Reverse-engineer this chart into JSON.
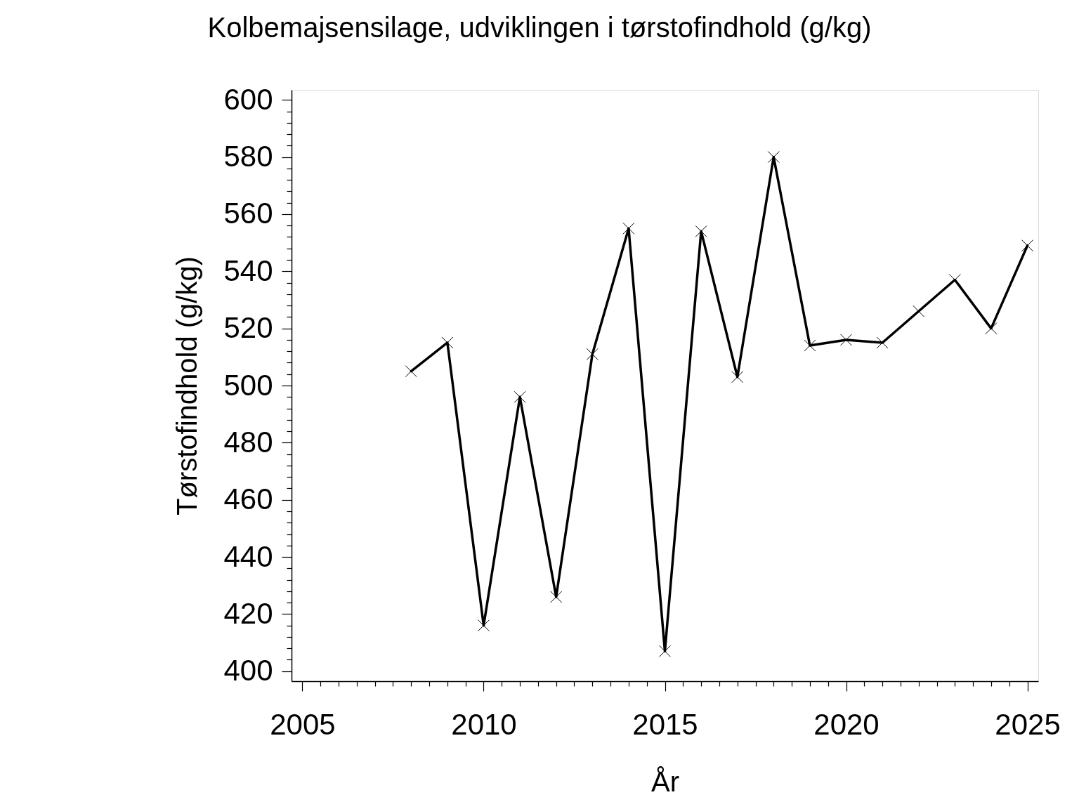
{
  "chart_data": {
    "type": "line",
    "title": "Kolbemajsensilage, udviklingen i tørstofindhold (g/kg)",
    "xlabel": "År",
    "ylabel": "Tørstofindhold (g/kg)",
    "x": [
      2008,
      2009,
      2010,
      2011,
      2012,
      2013,
      2014,
      2015,
      2016,
      2017,
      2018,
      2019,
      2020,
      2021,
      2022,
      2023,
      2024,
      2025
    ],
    "series": [
      {
        "color": "#000000",
        "values": [
          505,
          515,
          416,
          496,
          426,
          511,
          555,
          407,
          554,
          503,
          580,
          514,
          516,
          515,
          526,
          537,
          520,
          549
        ]
      }
    ],
    "xlim": [
      2004.7,
      2025.3
    ],
    "ylim": [
      396.5,
      603.5
    ],
    "xticks": [
      2005,
      {
        "value": 2005.5,
        "label": null
      },
      {
        "value": 2006,
        "label": null
      },
      {
        "value": 2006.5,
        "label": null
      },
      {
        "value": 2007,
        "label": null
      },
      {
        "value": 2007.5,
        "label": null
      },
      {
        "value": 2008,
        "label": null
      },
      {
        "value": 2008.5,
        "label": null
      },
      {
        "value": 2009,
        "label": null
      },
      {
        "value": 2009.5,
        "label": null
      },
      2010,
      {
        "value": 2010.5,
        "label": null
      },
      {
        "value": 2011,
        "label": null
      },
      {
        "value": 2011.5,
        "label": null
      },
      {
        "value": 2012,
        "label": null
      },
      {
        "value": 2012.5,
        "label": null
      },
      {
        "value": 2013,
        "label": null
      },
      {
        "value": 2013.5,
        "label": null
      },
      {
        "value": 2014,
        "label": null
      },
      {
        "value": 2014.5,
        "label": null
      },
      2015,
      {
        "value": 2015.5,
        "label": null
      },
      {
        "value": 2016,
        "label": null
      },
      {
        "value": 2016.5,
        "label": null
      },
      {
        "value": 2017,
        "label": null
      },
      {
        "value": 2017.5,
        "label": null
      },
      {
        "value": 2018,
        "label": null
      },
      {
        "value": 2018.5,
        "label": null
      },
      {
        "value": 2019,
        "label": null
      },
      {
        "value": 2019.5,
        "label": null
      },
      2020,
      {
        "value": 2020.5,
        "label": null
      },
      {
        "value": 2021,
        "label": null
      },
      {
        "value": 2021.5,
        "label": null
      },
      {
        "value": 2022,
        "label": null
      },
      {
        "value": 2022.5,
        "label": null
      },
      {
        "value": 2023,
        "label": null
      },
      {
        "value": 2023.5,
        "label": null
      },
      {
        "value": 2024,
        "label": null
      },
      {
        "value": 2024.5,
        "label": null
      },
      2025
    ],
    "yticks": [
      400,
      {
        "value": 404,
        "label": null
      },
      {
        "value": 408,
        "label": null
      },
      {
        "value": 412,
        "label": null
      },
      {
        "value": 416,
        "label": null
      },
      420,
      {
        "value": 424,
        "label": null
      },
      {
        "value": 428,
        "label": null
      },
      {
        "value": 432,
        "label": null
      },
      {
        "value": 436,
        "label": null
      },
      440,
      {
        "value": 444,
        "label": null
      },
      {
        "value": 448,
        "label": null
      },
      {
        "value": 452,
        "label": null
      },
      {
        "value": 456,
        "label": null
      },
      460,
      {
        "value": 464,
        "label": null
      },
      {
        "value": 468,
        "label": null
      },
      {
        "value": 472,
        "label": null
      },
      {
        "value": 476,
        "label": null
      },
      480,
      {
        "value": 484,
        "label": null
      },
      {
        "value": 488,
        "label": null
      },
      {
        "value": 492,
        "label": null
      },
      {
        "value": 496,
        "label": null
      },
      500,
      {
        "value": 504,
        "label": null
      },
      {
        "value": 508,
        "label": null
      },
      {
        "value": 512,
        "label": null
      },
      {
        "value": 516,
        "label": null
      },
      520,
      {
        "value": 524,
        "label": null
      },
      {
        "value": 528,
        "label": null
      },
      {
        "value": 532,
        "label": null
      },
      {
        "value": 536,
        "label": null
      },
      540,
      {
        "value": 544,
        "label": null
      },
      {
        "value": 548,
        "label": null
      },
      {
        "value": 552,
        "label": null
      },
      {
        "value": 556,
        "label": null
      },
      560,
      {
        "value": 564,
        "label": null
      },
      {
        "value": 568,
        "label": null
      },
      {
        "value": 572,
        "label": null
      },
      {
        "value": 576,
        "label": null
      },
      580,
      {
        "value": 584,
        "label": null
      },
      {
        "value": 588,
        "label": null
      },
      {
        "value": 592,
        "label": null
      },
      {
        "value": 596,
        "label": null
      },
      600
    ],
    "grid": false,
    "legend": false,
    "marker": "cross",
    "line_style": "solid"
  }
}
